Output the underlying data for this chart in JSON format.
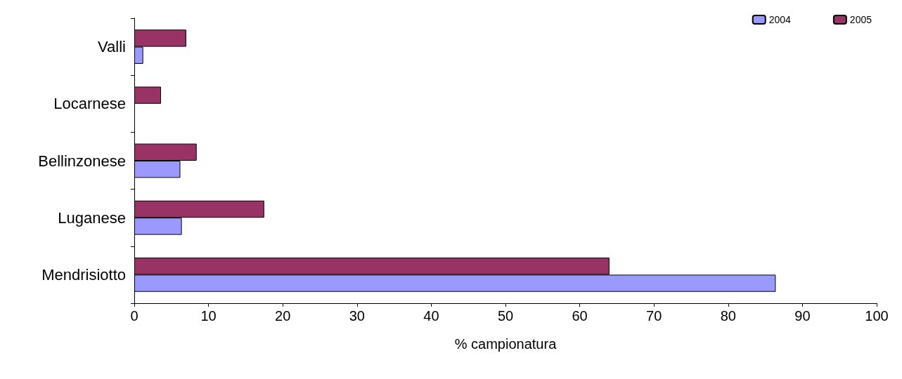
{
  "chart_data": {
    "type": "bar",
    "orientation": "horizontal",
    "xlabel": "% campionatura",
    "categories": [
      "Valli",
      "Locarnese",
      "Bellinzonese",
      "Luganese",
      "Mendrisiotto"
    ],
    "series": [
      {
        "name": "2004",
        "color": "#9999ff",
        "values": [
          1.2,
          null,
          6.2,
          6.4,
          86.4
        ]
      },
      {
        "name": "2005",
        "color": "#993366",
        "values": [
          7.0,
          3.6,
          8.4,
          17.5,
          64.0
        ]
      }
    ],
    "xlim": [
      0,
      100
    ],
    "xticks": [
      0,
      10,
      20,
      30,
      40,
      50,
      60,
      70,
      80,
      90,
      100
    ],
    "grid": false,
    "legend": "top right"
  }
}
